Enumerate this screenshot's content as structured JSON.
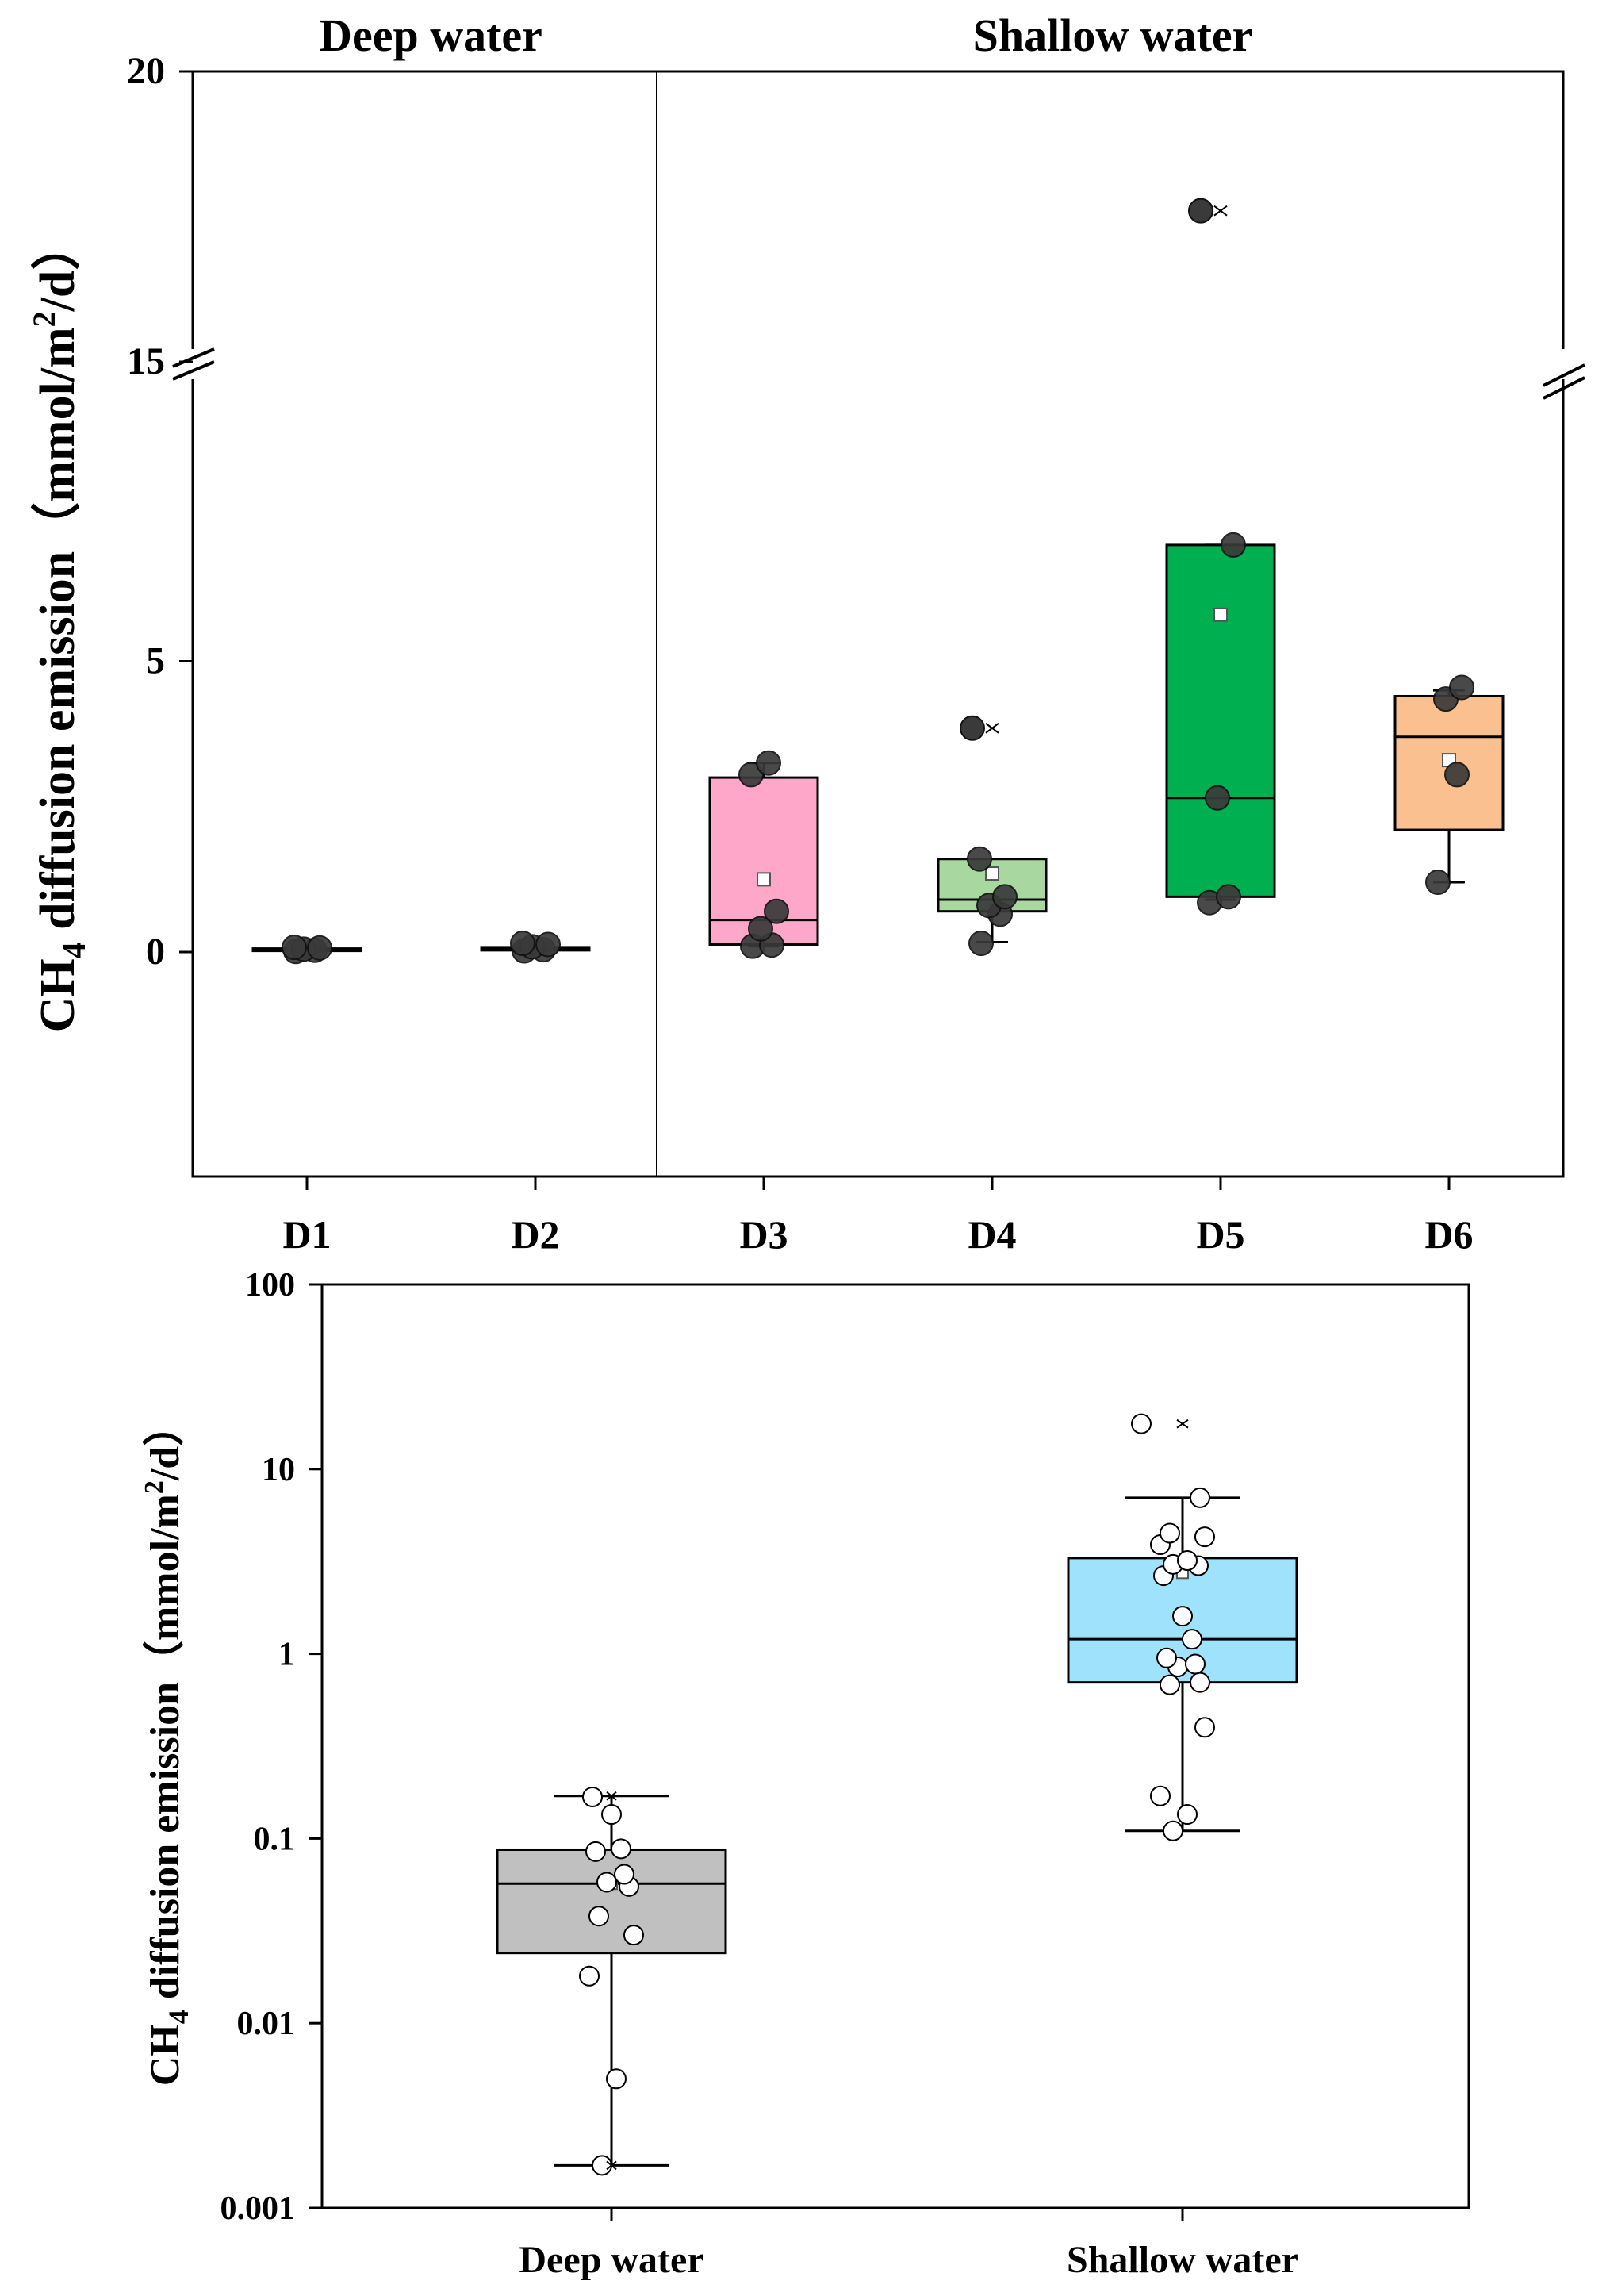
{
  "chart_data": [
    {
      "type": "box",
      "scale": "linear-broken",
      "y_break": [
        8,
        15
      ],
      "ylim": [
        -4,
        20
      ],
      "yticks": [
        0,
        5,
        15,
        20
      ],
      "ytick_labels": [
        "0",
        "5",
        "15",
        "20"
      ],
      "ylabel_main": "CH",
      "ylabel_sub": "4",
      "ylabel_rest": " diffusion emission（mmol/m",
      "ylabel_sup": "2",
      "ylabel_end": "/d）",
      "group_labels": [
        "Deep water",
        "Shallow water"
      ],
      "categories": [
        "D1",
        "D2",
        "D3",
        "D4",
        "D5",
        "D6"
      ],
      "boxes": [
        {
          "name": "D1",
          "color": "#000000",
          "q1": 0.02,
          "median": 0.04,
          "q3": 0.06,
          "mean": 0.04,
          "whisker_low": 0.01,
          "whisker_high": 0.08,
          "points": [
            0.01,
            0.03,
            0.05,
            0.07,
            0.08
          ],
          "outliers": []
        },
        {
          "name": "D2",
          "color": "#000000",
          "q1": 0.03,
          "median": 0.05,
          "q3": 0.07,
          "mean": 0.06,
          "whisker_low": 0.02,
          "whisker_high": 0.15,
          "points": [
            0.02,
            0.04,
            0.09,
            0.13,
            0.15
          ],
          "outliers": []
        },
        {
          "name": "D3",
          "color": "#FFA7C9",
          "q1": 0.13,
          "median": 0.55,
          "q3": 3.0,
          "mean": 1.25,
          "whisker_low": 0.1,
          "whisker_high": 3.25,
          "points": [
            0.1,
            0.12,
            0.4,
            0.7,
            3.05,
            3.25
          ],
          "outliers": []
        },
        {
          "name": "D4",
          "color": "#A8D8A0",
          "q1": 0.7,
          "median": 0.9,
          "q3": 1.6,
          "mean": 1.35,
          "whisker_low": 0.17,
          "whisker_high": 1.6,
          "points": [
            0.15,
            0.65,
            0.8,
            0.95,
            1.6
          ],
          "outliers": [
            3.85
          ]
        },
        {
          "name": "D5",
          "color": "#00B050",
          "q1": 0.95,
          "median": 2.65,
          "q3": 7.0,
          "mean": 5.8,
          "whisker_low": 0.9,
          "whisker_high": 7.0,
          "points": [
            0.85,
            0.95,
            2.65,
            7.0
          ],
          "outliers": [
            17.6
          ]
        },
        {
          "name": "D6",
          "color": "#FAC090",
          "q1": 2.1,
          "median": 3.7,
          "q3": 4.4,
          "mean": 3.3,
          "whisker_low": 1.2,
          "whisker_high": 4.5,
          "points": [
            1.2,
            3.05,
            4.35,
            4.55
          ],
          "outliers": []
        }
      ]
    },
    {
      "type": "box",
      "scale": "log",
      "ylim": [
        0.001,
        100
      ],
      "yticks": [
        0.001,
        0.01,
        0.1,
        1,
        10,
        100
      ],
      "ytick_labels": [
        "0.001",
        "0.01",
        "0.1",
        "1",
        "10",
        "100"
      ],
      "ylabel_main": "CH",
      "ylabel_sub": "4",
      "ylabel_rest": " diffusion emission（mmol/m",
      "ylabel_sup": "2",
      "ylabel_end": "/d）",
      "categories": [
        "Deep water",
        "Shallow water"
      ],
      "boxes": [
        {
          "name": "Deep water",
          "color": "#C0C0C0",
          "q1": 0.024,
          "median": 0.057,
          "q3": 0.087,
          "mean": 0.057,
          "whisker_low": 0.0017,
          "whisker_high": 0.17,
          "points": [
            0.0017,
            0.005,
            0.018,
            0.03,
            0.038,
            0.055,
            0.058,
            0.064,
            0.085,
            0.088,
            0.135,
            0.168
          ],
          "outliers": []
        },
        {
          "name": "Shallow water",
          "color": "#9EE3FB",
          "q1": 0.7,
          "median": 1.2,
          "q3": 3.3,
          "mean": 2.75,
          "whisker_low": 0.11,
          "whisker_high": 7.0,
          "points": [
            0.11,
            0.135,
            0.17,
            0.4,
            0.68,
            0.7,
            0.85,
            0.88,
            0.95,
            1.2,
            1.6,
            2.65,
            3.0,
            3.05,
            3.2,
            3.9,
            4.3,
            4.5,
            7.0
          ],
          "outliers": [
            17.6
          ]
        }
      ]
    }
  ]
}
